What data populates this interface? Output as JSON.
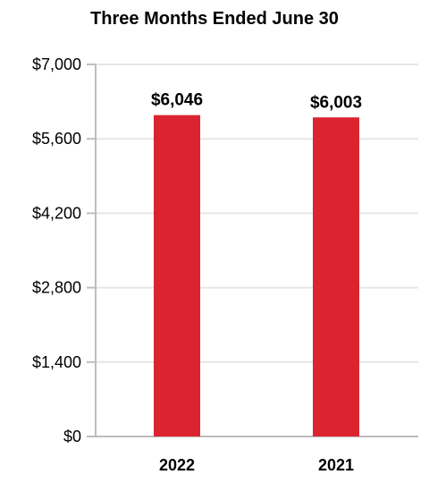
{
  "chart_data": {
    "type": "bar",
    "title": "Three Months Ended June 30",
    "xlabel": "",
    "ylabel": "",
    "categories": [
      "2022",
      "2021"
    ],
    "values": [
      6046,
      6003
    ],
    "value_labels": [
      "$6,046",
      "$6,003"
    ],
    "ylim": [
      0,
      7000
    ],
    "yticks": [
      0,
      1400,
      2800,
      4200,
      5600,
      7000
    ],
    "ytick_labels": [
      "$0",
      "$1,400",
      "$2,800",
      "$4,200",
      "$5,600",
      "$7,000"
    ],
    "grid": true,
    "legend": "none",
    "bar_color": "#dc2430",
    "grid_color": "#e6e6e6",
    "axis_color": "#bdbdbd"
  }
}
